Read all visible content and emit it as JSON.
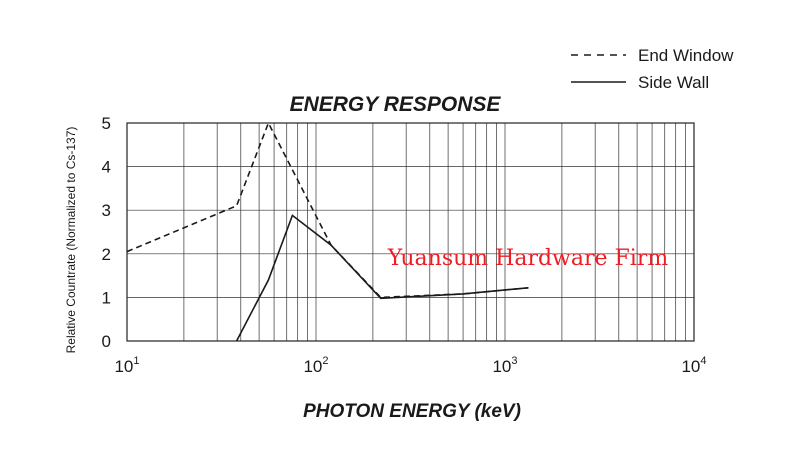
{
  "chart_data": {
    "type": "line",
    "title": "ENERGY RESPONSE",
    "xlabel": "PHOTON ENERGY (keV)",
    "ylabel": "Relative Countrate (Normalized to Cs-137)",
    "x_scale": "log",
    "xlim": [
      10,
      10000
    ],
    "ylim": [
      0,
      5
    ],
    "x_ticks": [
      {
        "value": 10,
        "base": "10",
        "exp": "1"
      },
      {
        "value": 100,
        "base": "10",
        "exp": "2"
      },
      {
        "value": 1000,
        "base": "10",
        "exp": "3"
      },
      {
        "value": 10000,
        "base": "10",
        "exp": "4"
      }
    ],
    "y_ticks": [
      "0",
      "1",
      "2",
      "3",
      "4",
      "5"
    ],
    "grid": true,
    "legend_position": "top-right",
    "series": [
      {
        "name": "End Window",
        "style": "dashed",
        "points": [
          [
            10,
            2.05
          ],
          [
            38,
            3.1
          ],
          [
            56,
            5.0
          ],
          [
            120,
            2.2
          ],
          [
            220,
            1.0
          ],
          [
            600,
            1.08
          ],
          [
            1330,
            1.22
          ]
        ]
      },
      {
        "name": "Side Wall",
        "style": "solid",
        "points": [
          [
            38,
            0.0
          ],
          [
            56,
            1.4
          ],
          [
            75,
            2.88
          ],
          [
            120,
            2.2
          ],
          [
            220,
            0.98
          ],
          [
            600,
            1.08
          ],
          [
            1330,
            1.22
          ]
        ]
      }
    ]
  },
  "watermark": "Yuansum Hardware Firm",
  "colors": {
    "line": "#1a1a1a",
    "watermark": "#ee1c24"
  }
}
